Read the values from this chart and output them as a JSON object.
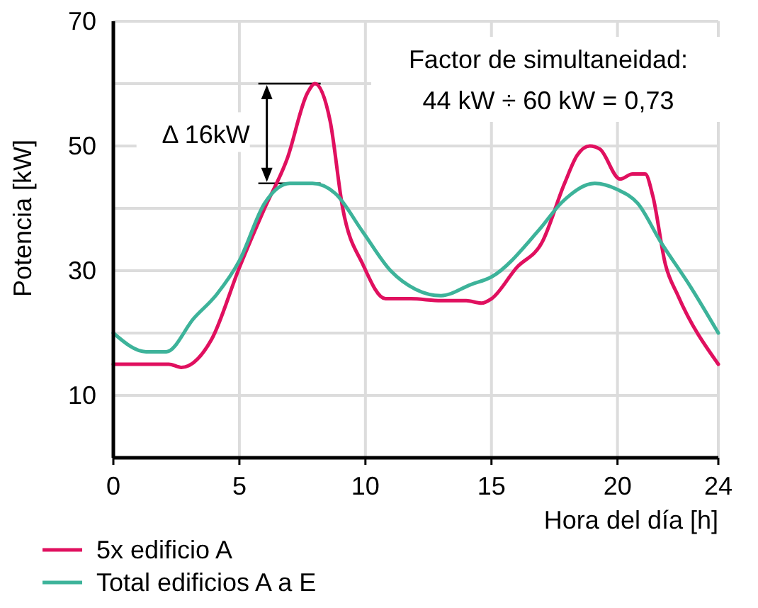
{
  "chart_data": {
    "type": "line",
    "xlabel": "Hora del día [h]",
    "ylabel": "Potencia [kW]",
    "xlim": [
      0,
      24
    ],
    "xticks": [
      0,
      5,
      10,
      15,
      20,
      24
    ],
    "ylim": [
      0,
      70
    ],
    "yticks": [
      {
        "value": 0,
        "label": null
      },
      10,
      {
        "value": 20,
        "label": null
      },
      30,
      {
        "value": 40,
        "label": null
      },
      50,
      {
        "value": 60,
        "label": null
      },
      70
    ],
    "grid": true,
    "legend": "bottom",
    "line_style": "solid",
    "annotations": [
      "Δ 16kW",
      "Factor de simultaneidad:",
      "44 kW ÷ 60 kW = 0,73"
    ],
    "series": [
      {
        "name": "5x edificio A",
        "color": "#e0105f",
        "x": [
          0,
          1,
          2.2,
          2.7,
          3.9,
          5,
          6,
          6.9,
          7.7,
          8,
          8.6,
          9.1,
          9.9,
          10.8,
          11.8,
          13,
          14,
          14.6,
          15,
          16,
          17,
          17.9,
          18.4,
          18.9,
          19.3,
          20.1,
          20.6,
          21.1,
          21.4,
          21.9,
          22.4,
          24
        ],
        "values": [
          15,
          15,
          15,
          14.5,
          19,
          30.5,
          40,
          48,
          58.5,
          60,
          54,
          40,
          31,
          25.5,
          25.5,
          25.2,
          25.2,
          24.8,
          25.5,
          30.5,
          34.5,
          44,
          48.5,
          50,
          49.5,
          44.7,
          45.5,
          45.5,
          42,
          31,
          26,
          15
        ]
      },
      {
        "name": "Total edificios A a E",
        "color": "#3db39a",
        "x": [
          0,
          1.3,
          2.1,
          3.2,
          4.1,
          5,
          6,
          7,
          7.9,
          8.8,
          9.9,
          11,
          12,
          13,
          14.2,
          15,
          16.9,
          17.8,
          19.1,
          20,
          20.8,
          21.7,
          22.9,
          24
        ],
        "values": [
          20,
          17,
          17,
          22.4,
          26.2,
          31.6,
          40.8,
          44,
          44,
          42.4,
          36.2,
          30,
          27,
          26,
          27.8,
          29,
          36.6,
          41,
          44,
          43,
          40.8,
          34.7,
          27.4,
          20
        ]
      }
    ]
  }
}
